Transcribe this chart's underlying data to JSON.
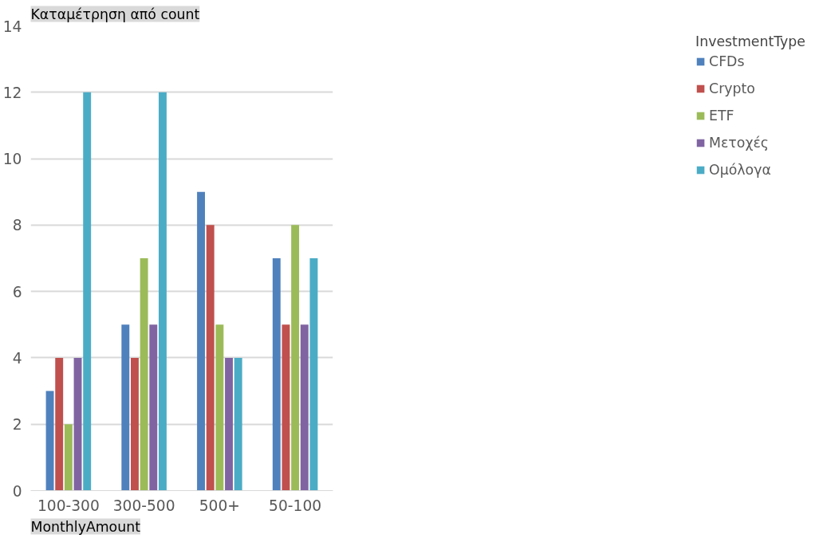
{
  "chart_data": {
    "type": "bar",
    "ylabel": "Καταμέτρηση από count",
    "xlabel": "MonthlyAmount",
    "legend_title": "InvestmentType",
    "categories": [
      "100-300",
      "300-500",
      "500+",
      "50-100"
    ],
    "series": [
      {
        "name": "CFDs",
        "color": "#4f81bd",
        "values": [
          3,
          5,
          9,
          7
        ]
      },
      {
        "name": "Crypto",
        "color": "#c0504d",
        "values": [
          4,
          4,
          8,
          5
        ]
      },
      {
        "name": "ETF",
        "color": "#9bbb59",
        "values": [
          2,
          7,
          5,
          8
        ]
      },
      {
        "name": "Μετοχές",
        "color": "#8064a2",
        "values": [
          4,
          5,
          4,
          5
        ]
      },
      {
        "name": "Ομόλογα",
        "color": "#4bacc6",
        "values": [
          12,
          12,
          4,
          7
        ]
      }
    ],
    "ylim": [
      0,
      14
    ],
    "yticks": [
      0,
      2,
      4,
      6,
      8,
      10,
      12,
      14
    ],
    "grid": "y",
    "legend": "right"
  }
}
